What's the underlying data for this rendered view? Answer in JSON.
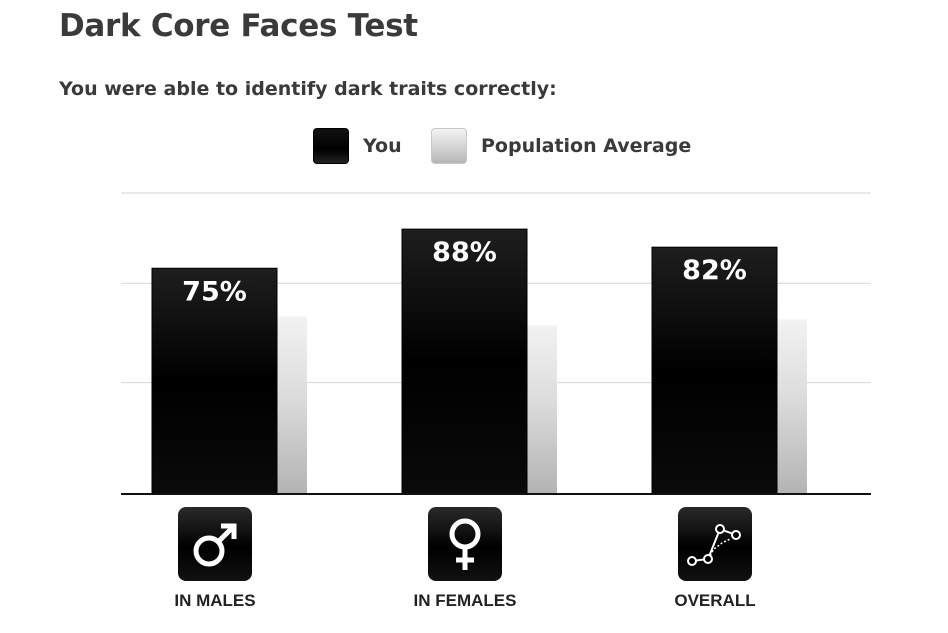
{
  "page": {
    "title": "Dark Core Faces Test",
    "subtitle": "You were able to identify dark traits correctly:"
  },
  "legend": [
    {
      "label": "You",
      "color": "#000000"
    },
    {
      "label": "Population Average",
      "color": "#d0d0d0"
    }
  ],
  "chart_data": {
    "type": "bar",
    "categories": [
      "IN MALES",
      "IN FEMALES",
      "OVERALL"
    ],
    "category_icons": [
      "male-symbol-icon",
      "female-symbol-icon",
      "line-graph-icon"
    ],
    "series": [
      {
        "name": "You",
        "values": [
          75,
          88,
          82
        ],
        "data_labels": [
          "75%",
          "88%",
          "82%"
        ],
        "color": "#000000"
      },
      {
        "name": "Population Average",
        "values": [
          59,
          56,
          58
        ],
        "color": "#d0d0d0"
      }
    ],
    "ylim": [
      0,
      100
    ],
    "grid": true,
    "legend_position": "top-center"
  }
}
